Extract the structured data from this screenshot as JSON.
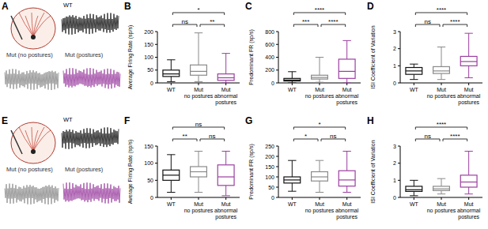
{
  "illustrations": [
    {
      "letter": "A",
      "labels": [
        "WT",
        "Mut (no postures)",
        "Mut (postures)"
      ],
      "colors": [
        "#111111",
        "#8a8a8a",
        "#9b3fa0"
      ]
    },
    {
      "letter": "E",
      "labels": [
        "WT",
        "Mut (no postures)",
        "Mut (postures)"
      ],
      "colors": [
        "#111111",
        "#8a8a8a",
        "#9b3fa0"
      ]
    }
  ],
  "chart_data": [
    {
      "type": "box",
      "title": "B",
      "y_label": "Average Firing Rate (sp/s)",
      "categories": [
        "WT",
        "Mut\nno postures",
        "Mut\nabnormal\npostures"
      ],
      "colors": [
        "#111111",
        "#8a8a8a",
        "#9b3fa0"
      ],
      "boxes": [
        {
          "min": 5,
          "q1": 25,
          "median": 35,
          "q3": 50,
          "max": 90
        },
        {
          "min": 5,
          "q1": 30,
          "median": 45,
          "q3": 70,
          "max": 195
        },
        {
          "min": 0,
          "q1": 10,
          "median": 20,
          "q3": 35,
          "max": 115
        }
      ],
      "ylim": [
        0,
        200
      ],
      "yticks": [
        0,
        50,
        100,
        150,
        200
      ],
      "annotations": [
        {
          "from": 0,
          "to": 1,
          "text": "ns"
        },
        {
          "from": 1,
          "to": 2,
          "text": "**"
        },
        {
          "from": 0,
          "to": 2,
          "text": "*"
        }
      ]
    },
    {
      "type": "box",
      "title": "C",
      "y_label": "Predominant FR (sp/s)",
      "categories": [
        "WT",
        "Mut\nno postures",
        "Mut\nabnormal\npostures"
      ],
      "colors": [
        "#111111",
        "#8a8a8a",
        "#9b3fa0"
      ],
      "boxes": [
        {
          "min": 0,
          "q1": 30,
          "median": 45,
          "q3": 70,
          "max": 175
        },
        {
          "min": 10,
          "q1": 60,
          "median": 85,
          "q3": 120,
          "max": 400
        },
        {
          "min": 0,
          "q1": 70,
          "median": 180,
          "q3": 370,
          "max": 660
        }
      ],
      "ylim": [
        0,
        800
      ],
      "yticks": [
        0,
        200,
        400,
        600,
        800
      ],
      "annotations": [
        {
          "from": 0,
          "to": 1,
          "text": "***"
        },
        {
          "from": 1,
          "to": 2,
          "text": "****"
        },
        {
          "from": 0,
          "to": 2,
          "text": "****"
        }
      ]
    },
    {
      "type": "box",
      "title": "D",
      "y_label": "ISI Coefficient of Variation",
      "categories": [
        "WT",
        "Mut\nno postures",
        "Mut\nabnormal\npostures"
      ],
      "colors": [
        "#111111",
        "#8a8a8a",
        "#9b3fa0"
      ],
      "boxes": [
        {
          "min": 0.2,
          "q1": 0.5,
          "median": 0.7,
          "q3": 0.9,
          "max": 1.1
        },
        {
          "min": 0.2,
          "q1": 0.55,
          "median": 0.7,
          "q3": 0.95,
          "max": 2.1
        },
        {
          "min": 0.3,
          "q1": 1.0,
          "median": 1.25,
          "q3": 1.55,
          "max": 2.9
        }
      ],
      "ylim": [
        0,
        3
      ],
      "yticks": [
        0,
        1,
        2,
        3
      ],
      "annotations": [
        {
          "from": 0,
          "to": 1,
          "text": "ns"
        },
        {
          "from": 1,
          "to": 2,
          "text": "****"
        },
        {
          "from": 0,
          "to": 2,
          "text": "****"
        }
      ]
    },
    {
      "type": "box",
      "title": "F",
      "y_label": "Average Firing Rate (sp/s)",
      "categories": [
        "WT",
        "Mut\nno postures",
        "Mut\nabnormal\npostures"
      ],
      "colors": [
        "#111111",
        "#8a8a8a",
        "#9b3fa0"
      ],
      "boxes": [
        {
          "min": 15,
          "q1": 50,
          "median": 65,
          "q3": 80,
          "max": 125
        },
        {
          "min": 15,
          "q1": 60,
          "median": 75,
          "q3": 90,
          "max": 135
        },
        {
          "min": 5,
          "q1": 35,
          "median": 60,
          "q3": 95,
          "max": 135
        }
      ],
      "ylim": [
        0,
        150
      ],
      "yticks": [
        0,
        50,
        100,
        150
      ],
      "annotations": [
        {
          "from": 0,
          "to": 1,
          "text": "**"
        },
        {
          "from": 1,
          "to": 2,
          "text": "ns"
        },
        {
          "from": 0,
          "to": 2,
          "text": "ns"
        }
      ]
    },
    {
      "type": "box",
      "title": "G",
      "y_label": "Predominant FR (sp/s)",
      "categories": [
        "WT",
        "Mut\nno postures",
        "Mut\nabnormal\npostures"
      ],
      "colors": [
        "#111111",
        "#8a8a8a",
        "#9b3fa0"
      ],
      "boxes": [
        {
          "min": 30,
          "q1": 70,
          "median": 85,
          "q3": 100,
          "max": 180
        },
        {
          "min": 25,
          "q1": 80,
          "median": 100,
          "q3": 125,
          "max": 180
        },
        {
          "min": 25,
          "q1": 55,
          "median": 85,
          "q3": 130,
          "max": 225
        }
      ],
      "ylim": [
        0,
        250
      ],
      "yticks": [
        0,
        50,
        100,
        150,
        200,
        250
      ],
      "annotations": [
        {
          "from": 0,
          "to": 1,
          "text": "*"
        },
        {
          "from": 1,
          "to": 2,
          "text": "ns"
        },
        {
          "from": 0,
          "to": 2,
          "text": "*"
        }
      ]
    },
    {
      "type": "box",
      "title": "H",
      "y_label": "ISI Coefficient of Variation",
      "categories": [
        "WT",
        "Mut\nno postures",
        "Mut\nabnormal\npostures"
      ],
      "colors": [
        "#111111",
        "#8a8a8a",
        "#9b3fa0"
      ],
      "boxes": [
        {
          "min": 0.1,
          "q1": 0.35,
          "median": 0.45,
          "q3": 0.65,
          "max": 1.0
        },
        {
          "min": 0.2,
          "q1": 0.4,
          "median": 0.5,
          "q3": 0.65,
          "max": 1.1
        },
        {
          "min": 0.2,
          "q1": 0.6,
          "median": 0.9,
          "q3": 1.3,
          "max": 2.7
        }
      ],
      "ylim": [
        0,
        3
      ],
      "yticks": [
        0,
        1,
        2,
        3
      ],
      "annotations": [
        {
          "from": 0,
          "to": 1,
          "text": "ns"
        },
        {
          "from": 1,
          "to": 2,
          "text": "****"
        },
        {
          "from": 0,
          "to": 2,
          "text": "****"
        }
      ]
    }
  ]
}
